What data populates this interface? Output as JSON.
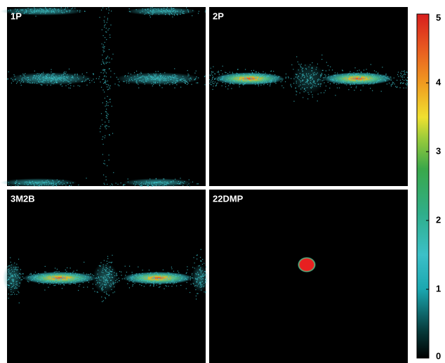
{
  "chart_data": {
    "type": "heatmap",
    "panels": [
      {
        "title": "1P"
      },
      {
        "title": "2P"
      },
      {
        "title": "3M2B"
      },
      {
        "title": "22DMP"
      }
    ],
    "colorbar": {
      "ylim": [
        0,
        5
      ],
      "yticks": [
        0,
        1,
        2,
        3,
        4,
        5
      ]
    }
  }
}
